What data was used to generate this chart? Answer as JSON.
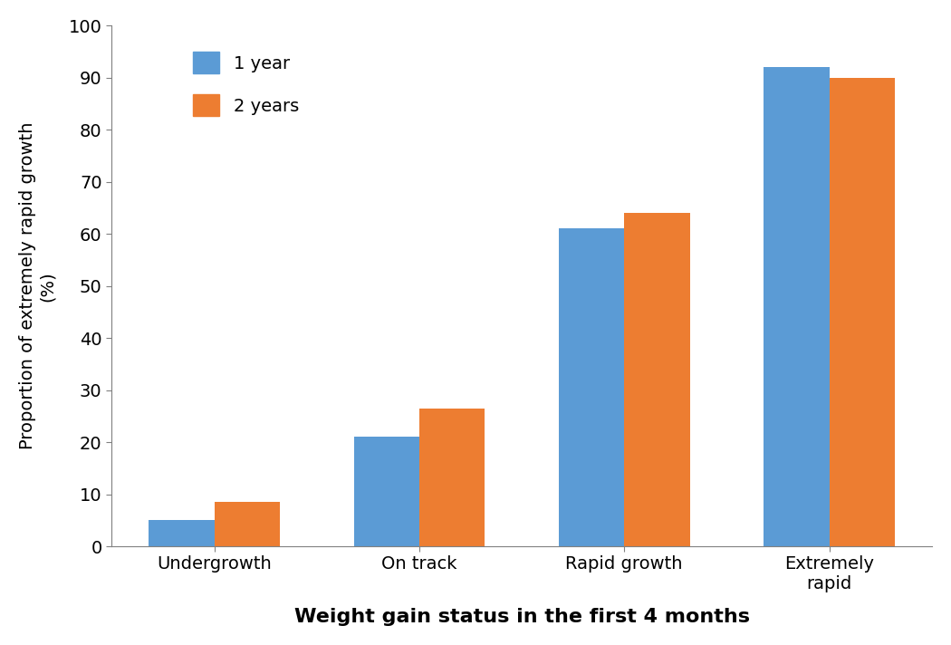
{
  "categories": [
    "Undergrowth",
    "On track",
    "Rapid growth",
    "Extremely\nrapid"
  ],
  "series": [
    {
      "label": "1 year",
      "values": [
        5,
        21,
        61,
        92
      ],
      "color": "#5B9BD5"
    },
    {
      "label": "2 years",
      "values": [
        8.5,
        26.5,
        64,
        90
      ],
      "color": "#ED7D31"
    }
  ],
  "ylabel_line1": "Proportion of extremely rapid growth",
  "ylabel_line2": "(%)",
  "xlabel": "Weight gain status in the first 4 months",
  "ylim": [
    0,
    100
  ],
  "yticks": [
    0,
    10,
    20,
    30,
    40,
    50,
    60,
    70,
    80,
    90,
    100
  ],
  "bar_width": 0.32,
  "legend_fontsize": 14,
  "xlabel_fontsize": 16,
  "ylabel_fontsize": 14,
  "tick_fontsize": 14,
  "background_color": "#ffffff"
}
